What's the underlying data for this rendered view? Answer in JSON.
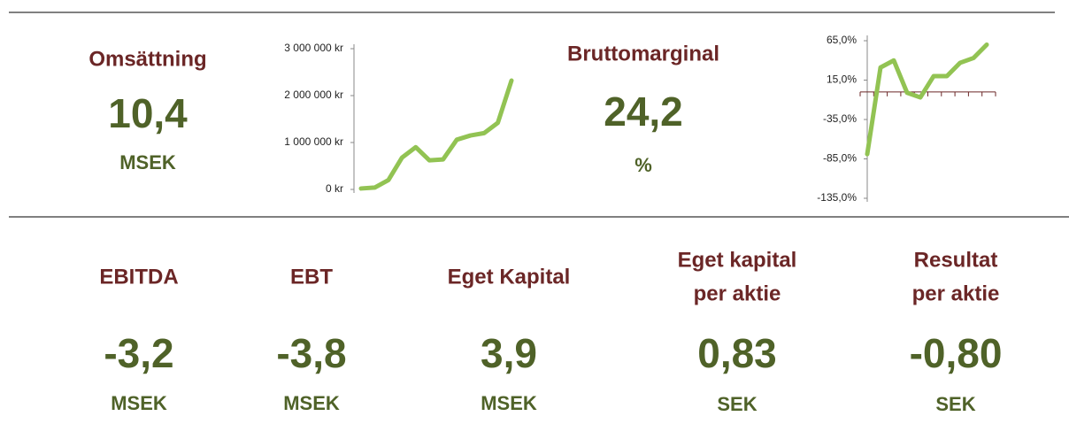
{
  "top_kpis": [
    {
      "title": [
        "Omsättning"
      ],
      "value": "10,4",
      "unit": "MSEK"
    },
    {
      "title": [
        "Bruttomarginal"
      ],
      "value": "24,2",
      "unit": "%"
    }
  ],
  "chart_data": [
    {
      "type": "line",
      "categories": [
        null,
        null,
        null,
        null,
        null,
        null,
        null,
        null,
        null,
        null,
        null,
        null
      ],
      "values": [
        20000,
        40000,
        200000,
        680000,
        900000,
        620000,
        640000,
        1060000,
        1150000,
        1200000,
        1420000,
        2320000
      ],
      "color": "#92c353",
      "ylim": [
        0,
        3000000
      ],
      "yticks": [
        {
          "value": 0,
          "label": "0 kr"
        },
        {
          "value": 1000000,
          "label": "1 000 000 kr"
        },
        {
          "value": 2000000,
          "label": "2 000 000 kr"
        },
        {
          "value": 3000000,
          "label": "3 000 000 kr"
        }
      ]
    },
    {
      "type": "line",
      "categories": [
        null,
        null,
        null,
        null,
        null,
        null,
        null,
        null,
        null,
        null
      ],
      "values": [
        -79,
        31,
        40,
        -1,
        -7,
        20,
        20,
        37,
        43,
        60
      ],
      "color": "#92c353",
      "ylim": [
        -135,
        65
      ],
      "yticks": [
        {
          "value": 65,
          "label": "65,0%"
        },
        {
          "value": 15,
          "label": "15,0%"
        },
        {
          "value": -35,
          "label": "-35,0%"
        },
        {
          "value": -85,
          "label": "-85,0%"
        },
        {
          "value": -135,
          "label": "-135,0%"
        }
      ]
    }
  ],
  "bottom_kpis": [
    {
      "title": [
        "EBITDA"
      ],
      "value": "-3,2",
      "unit": "MSEK"
    },
    {
      "title": [
        "EBT"
      ],
      "value": "-3,8",
      "unit": "MSEK"
    },
    {
      "title": [
        "Eget Kapital"
      ],
      "value": "3,9",
      "unit": "MSEK"
    },
    {
      "title": [
        "Eget kapital",
        "per aktie"
      ],
      "value": "0,83",
      "unit": "SEK"
    },
    {
      "title": [
        "Resultat",
        "per aktie"
      ],
      "value": "-0,80",
      "unit": "SEK"
    }
  ]
}
